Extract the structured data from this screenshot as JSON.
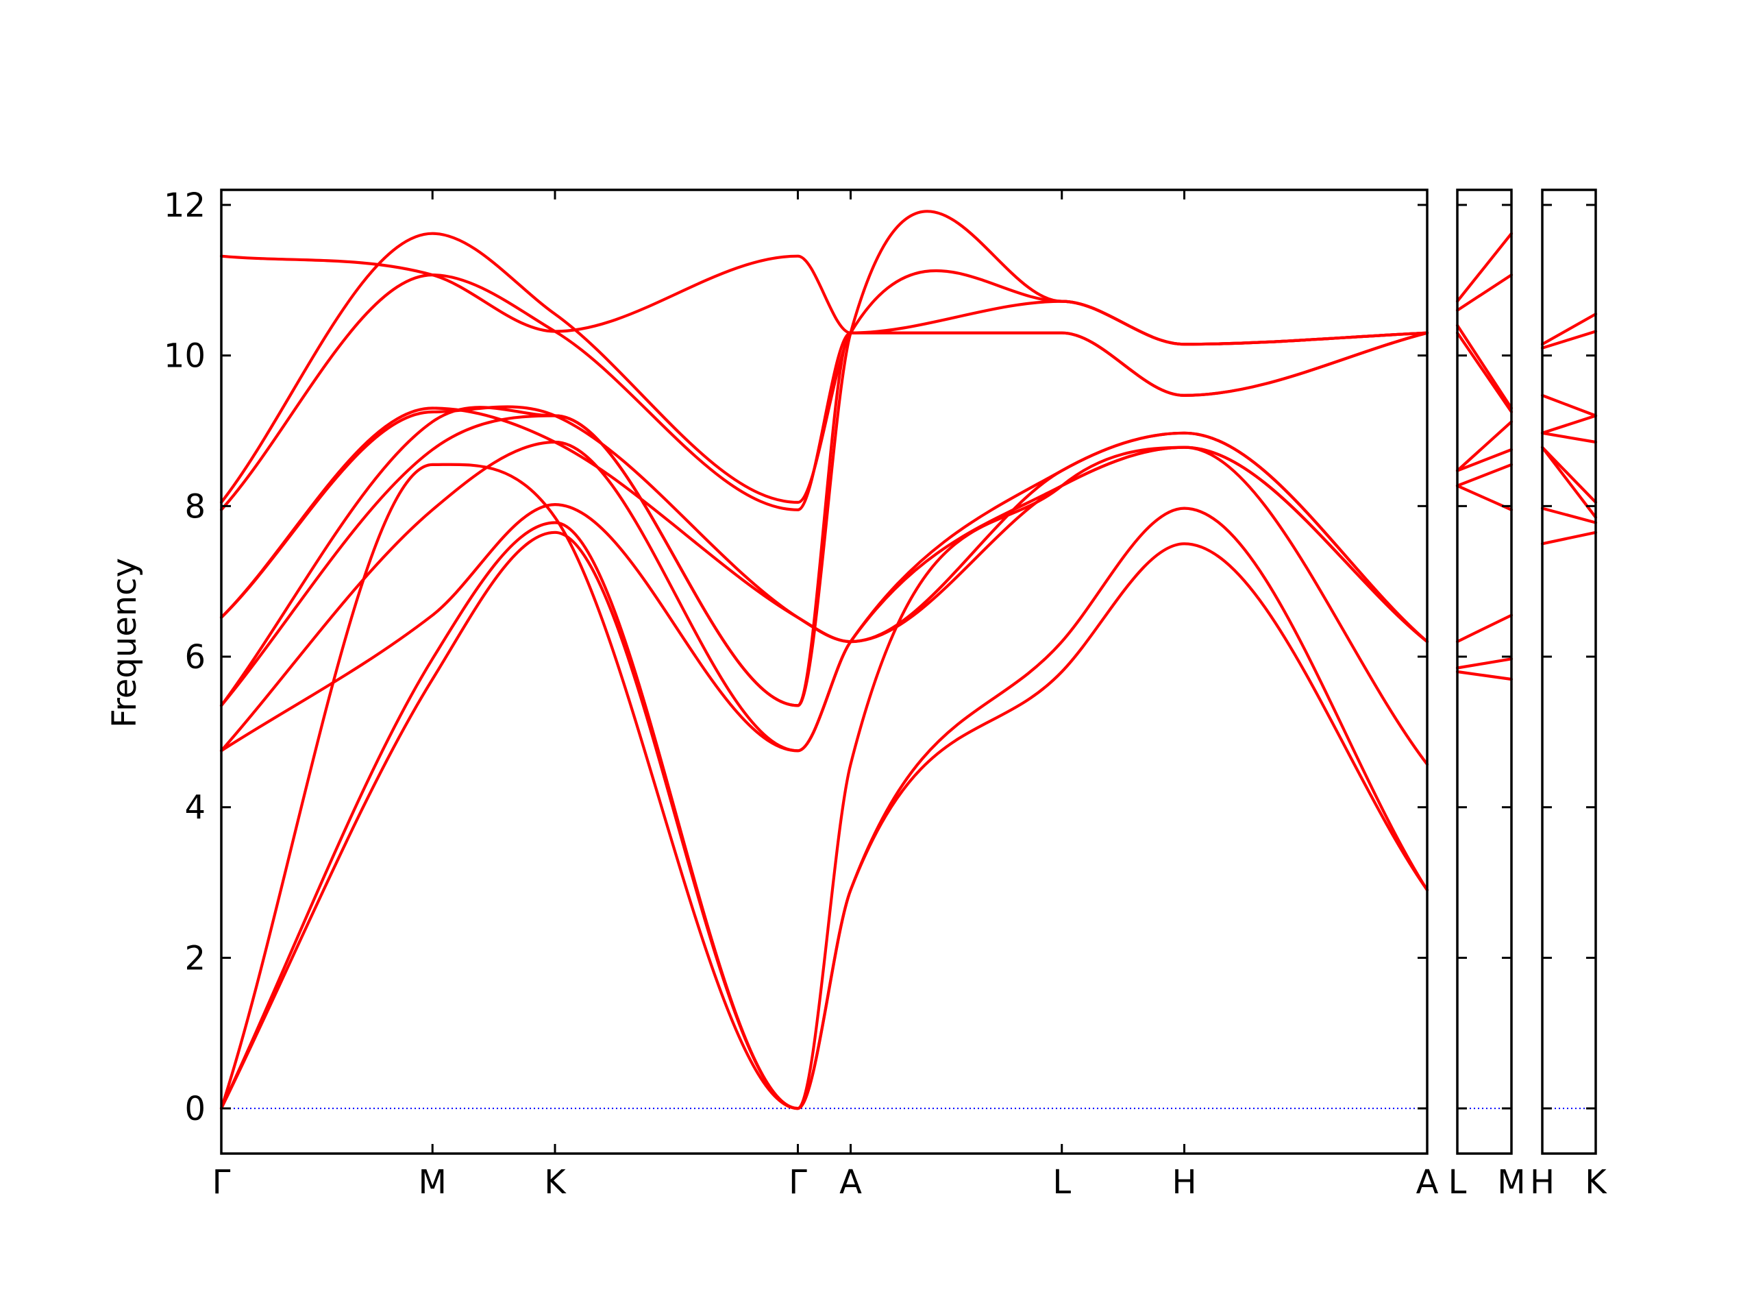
{
  "chart_data": {
    "type": "line",
    "title": "",
    "xlabel": "",
    "ylabel": "Frequency",
    "ylim": [
      -0.6,
      12.2
    ],
    "yticks": [
      0,
      2,
      4,
      6,
      8,
      10,
      12
    ],
    "grid": false,
    "legend": "none",
    "colors": {
      "band": "#ff0000",
      "zero_line": "#0000ff"
    },
    "panels": [
      {
        "labels": [
          "Γ",
          "M",
          "K",
          "Γ",
          "A",
          "L",
          "H",
          "A"
        ],
        "x": [
          0,
          1.0,
          1.58,
          2.73,
          2.98,
          3.98,
          4.56,
          5.71
        ],
        "series": [
          {
            "values": [
              0,
              5.7,
              7.65,
              0,
              2.9,
              5.8,
              7.5,
              2.9
            ]
          },
          {
            "values": [
              0,
              5.97,
              7.78,
              0,
              2.9,
              6.2,
              7.97,
              2.9
            ]
          },
          {
            "values": [
              0,
              8.55,
              7.85,
              0,
              4.57,
              8.27,
              8.78,
              4.57
            ]
          },
          {
            "values": [
              4.75,
              6.55,
              8.02,
              4.75,
              6.2,
              8.47,
              8.97,
              6.2
            ]
          },
          {
            "values": [
              4.75,
              7.95,
              8.85,
              4.75,
              6.2,
              8.27,
              8.78,
              6.2
            ]
          },
          {
            "values": [
              5.35,
              8.75,
              9.2,
              5.35,
              10.3,
              10.3,
              9.47,
              10.3
            ]
          },
          {
            "values": [
              5.35,
              9.12,
              9.2,
              5.35,
              10.3,
              10.72,
              10.15,
              10.3
            ]
          },
          {
            "values": [
              6.52,
              9.25,
              9.2,
              6.52,
              6.2,
              8.47,
              8.97,
              6.2
            ]
          },
          {
            "values": [
              6.52,
              9.3,
              8.85,
              6.52,
              6.2,
              8.27,
              8.78,
              6.2
            ]
          },
          {
            "values": [
              7.95,
              11.07,
              10.32,
              7.95,
              10.3,
              10.3,
              9.47,
              10.3
            ]
          },
          {
            "values": [
              8.05,
              11.62,
              10.55,
              8.05,
              10.3,
              10.72,
              10.15,
              10.3
            ]
          },
          {
            "values": [
              11.32,
              11.07,
              10.32,
              11.32,
              10.3,
              10.72,
              10.15,
              10.3
            ]
          }
        ]
      },
      {
        "labels": [
          "L",
          "M"
        ],
        "x": [
          0,
          1
        ],
        "series": [
          {
            "values": [
              5.8,
              5.7
            ]
          },
          {
            "values": [
              5.85,
              5.97
            ]
          },
          {
            "values": [
              6.2,
              6.55
            ]
          },
          {
            "values": [
              8.27,
              7.95
            ]
          },
          {
            "values": [
              8.27,
              8.55
            ]
          },
          {
            "values": [
              8.47,
              8.75
            ]
          },
          {
            "values": [
              8.47,
              9.12
            ]
          },
          {
            "values": [
              10.3,
              9.25
            ]
          },
          {
            "values": [
              10.4,
              9.3
            ]
          },
          {
            "values": [
              10.6,
              11.07
            ]
          },
          {
            "values": [
              10.72,
              11.62
            ]
          }
        ]
      },
      {
        "labels": [
          "H",
          "K"
        ],
        "x": [
          0,
          1
        ],
        "series": [
          {
            "values": [
              7.5,
              7.65
            ]
          },
          {
            "values": [
              7.97,
              7.78
            ]
          },
          {
            "values": [
              8.78,
              7.85
            ]
          },
          {
            "values": [
              8.78,
              8.05
            ]
          },
          {
            "values": [
              8.97,
              8.85
            ]
          },
          {
            "values": [
              8.97,
              9.2
            ]
          },
          {
            "values": [
              9.47,
              9.2
            ]
          },
          {
            "values": [
              10.1,
              10.32
            ]
          },
          {
            "values": [
              10.15,
              10.55
            ]
          }
        ]
      }
    ]
  }
}
